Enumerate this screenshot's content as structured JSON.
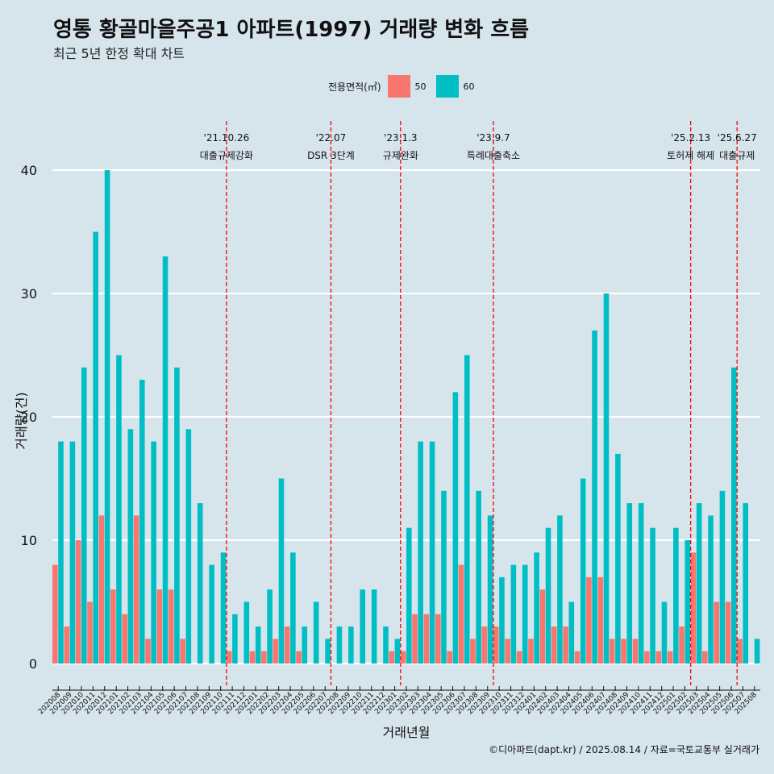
{
  "title": "영통 황골마을주공1 아파트(1997) 거래량 변화 흐름",
  "subtitle": "최근 5년 한정 확대 차트",
  "legend": {
    "title": "전용면적(㎡)",
    "items": [
      {
        "label": "50",
        "color": "#F8766D"
      },
      {
        "label": "60",
        "color": "#00BFC4"
      }
    ]
  },
  "caption": "©디아파트(dapt.kr) / 2025.08.14 / 자료=국토교통부 실거래가",
  "chart_data": {
    "type": "bar",
    "xlabel": "거래년월",
    "ylabel": "거래량(건)",
    "ylim": [
      0,
      40
    ],
    "yticks": [
      0,
      10,
      20,
      30,
      40
    ],
    "categories": [
      "202008",
      "202009",
      "202010",
      "202011",
      "202012",
      "202101",
      "202102",
      "202103",
      "202104",
      "202105",
      "202106",
      "202107",
      "202108",
      "202109",
      "202110",
      "202111",
      "202112",
      "202201",
      "202202",
      "202203",
      "202204",
      "202205",
      "202206",
      "202207",
      "202208",
      "202209",
      "202210",
      "202211",
      "202212",
      "202301",
      "202302",
      "202303",
      "202304",
      "202305",
      "202306",
      "202307",
      "202308",
      "202309",
      "202310",
      "202311",
      "202312",
      "202401",
      "202402",
      "202403",
      "202404",
      "202405",
      "202406",
      "202407",
      "202408",
      "202409",
      "202410",
      "202411",
      "202412",
      "202501",
      "202502",
      "202503",
      "202504",
      "202505",
      "202506",
      "202507",
      "202508"
    ],
    "series": [
      {
        "name": "50",
        "color": "#F8766D",
        "values": [
          8,
          3,
          10,
          5,
          12,
          6,
          4,
          12,
          2,
          6,
          6,
          2,
          0,
          0,
          0,
          1,
          0,
          1,
          1,
          2,
          3,
          1,
          0,
          0,
          0,
          0,
          0,
          0,
          0,
          1,
          1,
          4,
          4,
          4,
          1,
          8,
          2,
          3,
          3,
          2,
          1,
          2,
          6,
          3,
          3,
          1,
          7,
          7,
          2,
          2,
          2,
          1,
          1,
          1,
          3,
          9,
          1,
          5,
          5,
          2,
          0
        ]
      },
      {
        "name": "60",
        "color": "#00BFC4",
        "values": [
          18,
          18,
          24,
          35,
          40,
          25,
          19,
          23,
          18,
          33,
          24,
          19,
          13,
          8,
          9,
          4,
          5,
          3,
          6,
          15,
          9,
          3,
          5,
          2,
          3,
          3,
          6,
          6,
          3,
          2,
          11,
          18,
          18,
          14,
          22,
          25,
          14,
          12,
          7,
          8,
          8,
          9,
          11,
          12,
          5,
          15,
          27,
          30,
          17,
          13,
          13,
          11,
          5,
          11,
          10,
          13,
          12,
          14,
          24,
          13,
          2
        ]
      }
    ],
    "annotations": [
      {
        "date": "'21.10.26",
        "text": "대출규제강화",
        "after": "202110"
      },
      {
        "date": "'22.07",
        "text": "DSR 3단계",
        "after": "202207"
      },
      {
        "date": "'23.1.3",
        "text": "규제완화",
        "after": "202301"
      },
      {
        "date": "'23.9.7",
        "text": "특례대출축소",
        "after": "202309"
      },
      {
        "date": "'25.2.13",
        "text": "토허제 해제",
        "after": "202502"
      },
      {
        "date": "'25.6.27",
        "text": "대출규제",
        "after": "202506"
      }
    ],
    "grid": true,
    "legend_position": "top"
  }
}
